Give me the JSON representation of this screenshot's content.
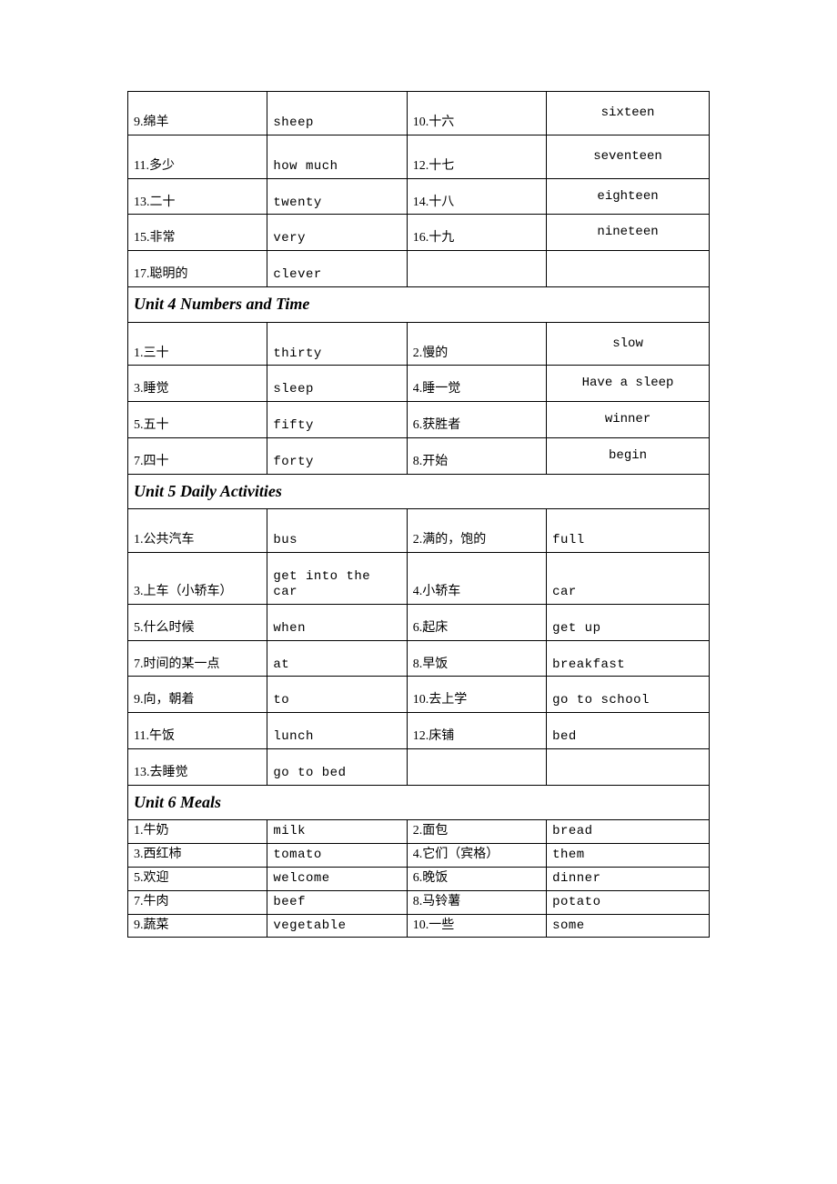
{
  "section1_rows": [
    {
      "h": "tall",
      "c1": "9.绵羊",
      "c2": "sheep",
      "c3": "10.十六",
      "c4": "sixteen",
      "c4style": "center-mono"
    },
    {
      "h": "tall",
      "c1": "11.多少",
      "c2": "how much",
      "c3": "12.十七",
      "c4": "seventeen",
      "c4style": "center-mono"
    },
    {
      "h": "med",
      "c1": "13.二十",
      "c2": "twenty",
      "c3": "14.十八",
      "c4": "eighteen",
      "c4style": "center-mono"
    },
    {
      "h": "med",
      "c1": "15.非常",
      "c2": "very",
      "c3": "16.十九",
      "c4": "nineteen",
      "c4style": "center-mono"
    },
    {
      "h": "med",
      "c1": "17.聪明的",
      "c2": "clever",
      "c3": "",
      "c4": "",
      "c4style": "center-mono"
    }
  ],
  "unit4_title": "Unit 4 Numbers and Time",
  "unit4_rows": [
    {
      "h": "tall",
      "c1": "1.三十",
      "c2": "thirty",
      "c3": "2.慢的",
      "c4": "slow",
      "c4style": "center-mono"
    },
    {
      "h": "med",
      "c1": "3.睡觉",
      "c2": "sleep",
      "c3": "4.睡一觉",
      "c4": "Have a sleep",
      "c4style": "center-mono"
    },
    {
      "h": "med",
      "c1": "5.五十",
      "c2": "fifty",
      "c3": "6.获胜者",
      "c4": "winner",
      "c4style": "center-mono"
    },
    {
      "h": "med",
      "c1": "7.四十",
      "c2": "forty",
      "c3": "8.开始",
      "c4": "begin",
      "c4style": "center-mono"
    }
  ],
  "unit5_title": "Unit 5 Daily Activities",
  "unit5_rows": [
    {
      "h": "tall",
      "c1": "1.公共汽车",
      "c2": "bus",
      "c3": "2.满的，饱的",
      "c4": "full",
      "c4style": "left-mono mono"
    },
    {
      "h": "med",
      "c1": "3.上车（小轿车）",
      "c2": "get into the car",
      "c3": "4.小轿车",
      "c4": "car",
      "c4style": "left-mono mono"
    },
    {
      "h": "med",
      "c1": "5.什么时候",
      "c2": "when",
      "c3": "6.起床",
      "c4": "get up",
      "c4style": "left-mono mono"
    },
    {
      "h": "med",
      "c1": "7.时间的某一点",
      "c2": "at",
      "c3": "8.早饭",
      "c4": "breakfast",
      "c4style": "left-mono mono"
    },
    {
      "h": "med",
      "c1": "9.向，朝着",
      "c2": "to",
      "c3": "10.去上学",
      "c4": "go to school",
      "c4style": "left-mono mono"
    },
    {
      "h": "med",
      "c1": "11.午饭",
      "c2": "lunch",
      "c3": "12.床铺",
      "c4": "bed",
      "c4style": "left-mono mono"
    },
    {
      "h": "med",
      "c1": "13.去睡觉",
      "c2": "go to bed",
      "c3": "",
      "c4": "",
      "c4style": "left-mono mono"
    }
  ],
  "unit6_title": "Unit 6 Meals",
  "unit6_rows": [
    {
      "h": "short",
      "c1": "1.牛奶",
      "c2": "milk",
      "c3": "2.面包",
      "c4": "bread",
      "c4style": "mono"
    },
    {
      "h": "short",
      "c1": "3.西红柿",
      "c2": "tomato",
      "c3": "4.它们（宾格）",
      "c4": "them",
      "c4style": "mono"
    },
    {
      "h": "short",
      "c1": "5.欢迎",
      "c2": "welcome",
      "c3": "6.晚饭",
      "c4": "dinner",
      "c4style": "mono"
    },
    {
      "h": "short",
      "c1": "7.牛肉",
      "c2": "beef",
      "c3": "8.马铃薯",
      "c4": "potato",
      "c4style": "mono"
    },
    {
      "h": "short",
      "c1": "9.蔬菜",
      "c2": "vegetable",
      "c3": "10.一些",
      "c4": "some",
      "c4style": "mono"
    }
  ]
}
